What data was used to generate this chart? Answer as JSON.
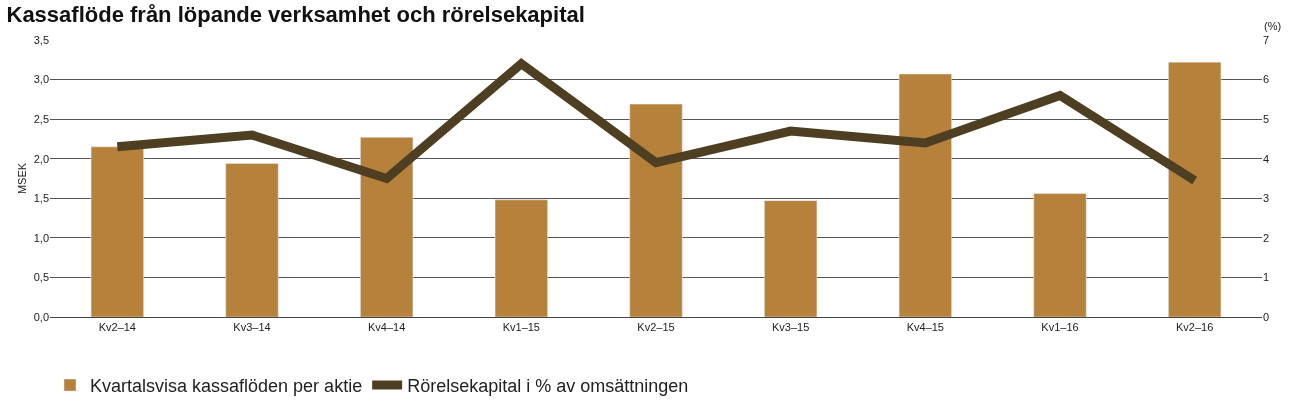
{
  "chart_data": {
    "type": "bar",
    "title": "Kassaflöde från löpande verksamhet och rörelsekapital",
    "ylabel": "MSEK",
    "y2label": "(%)",
    "categories": [
      "Kv2–14",
      "Kv3–14",
      "Kv4–14",
      "Kv1–15",
      "Kv2–15",
      "Kv3–15",
      "Kv4–15",
      "Kv1–16",
      "Kv2–16"
    ],
    "series": [
      {
        "name": "Kvartalsvisa kassaflöden per aktie",
        "color": "#b5813b",
        "values": [
          2.15,
          1.94,
          2.27,
          1.48,
          2.69,
          1.47,
          3.07,
          1.56,
          3.22
        ]
      },
      {
        "name": "Rörelsekapital i % av omsättningen",
        "color": "#4f3f22",
        "type": "line",
        "axis": "y2",
        "values": [
          4.3,
          4.6,
          3.5,
          6.4,
          3.9,
          4.7,
          4.4,
          5.6,
          3.45
        ]
      }
    ],
    "ylim": [
      0,
      3.5
    ],
    "yticks": [
      {
        "value": 0,
        "label": "0,0"
      },
      {
        "value": 0.5,
        "label": "0,5"
      },
      {
        "value": 1,
        "label": "1,0"
      },
      {
        "value": 1.5,
        "label": "1,5"
      },
      {
        "value": 2,
        "label": "2,0"
      },
      {
        "value": 2.5,
        "label": "2,5"
      },
      {
        "value": 3,
        "label": "3,0"
      },
      {
        "value": 3.5,
        "label": "3,5"
      }
    ],
    "y2lim": [
      0,
      7
    ],
    "y2ticks": [
      0,
      1,
      2,
      3,
      4,
      5,
      6,
      7
    ],
    "grid": "y",
    "legend": "bottom left",
    "marker": "none",
    "line_style": "solid"
  }
}
